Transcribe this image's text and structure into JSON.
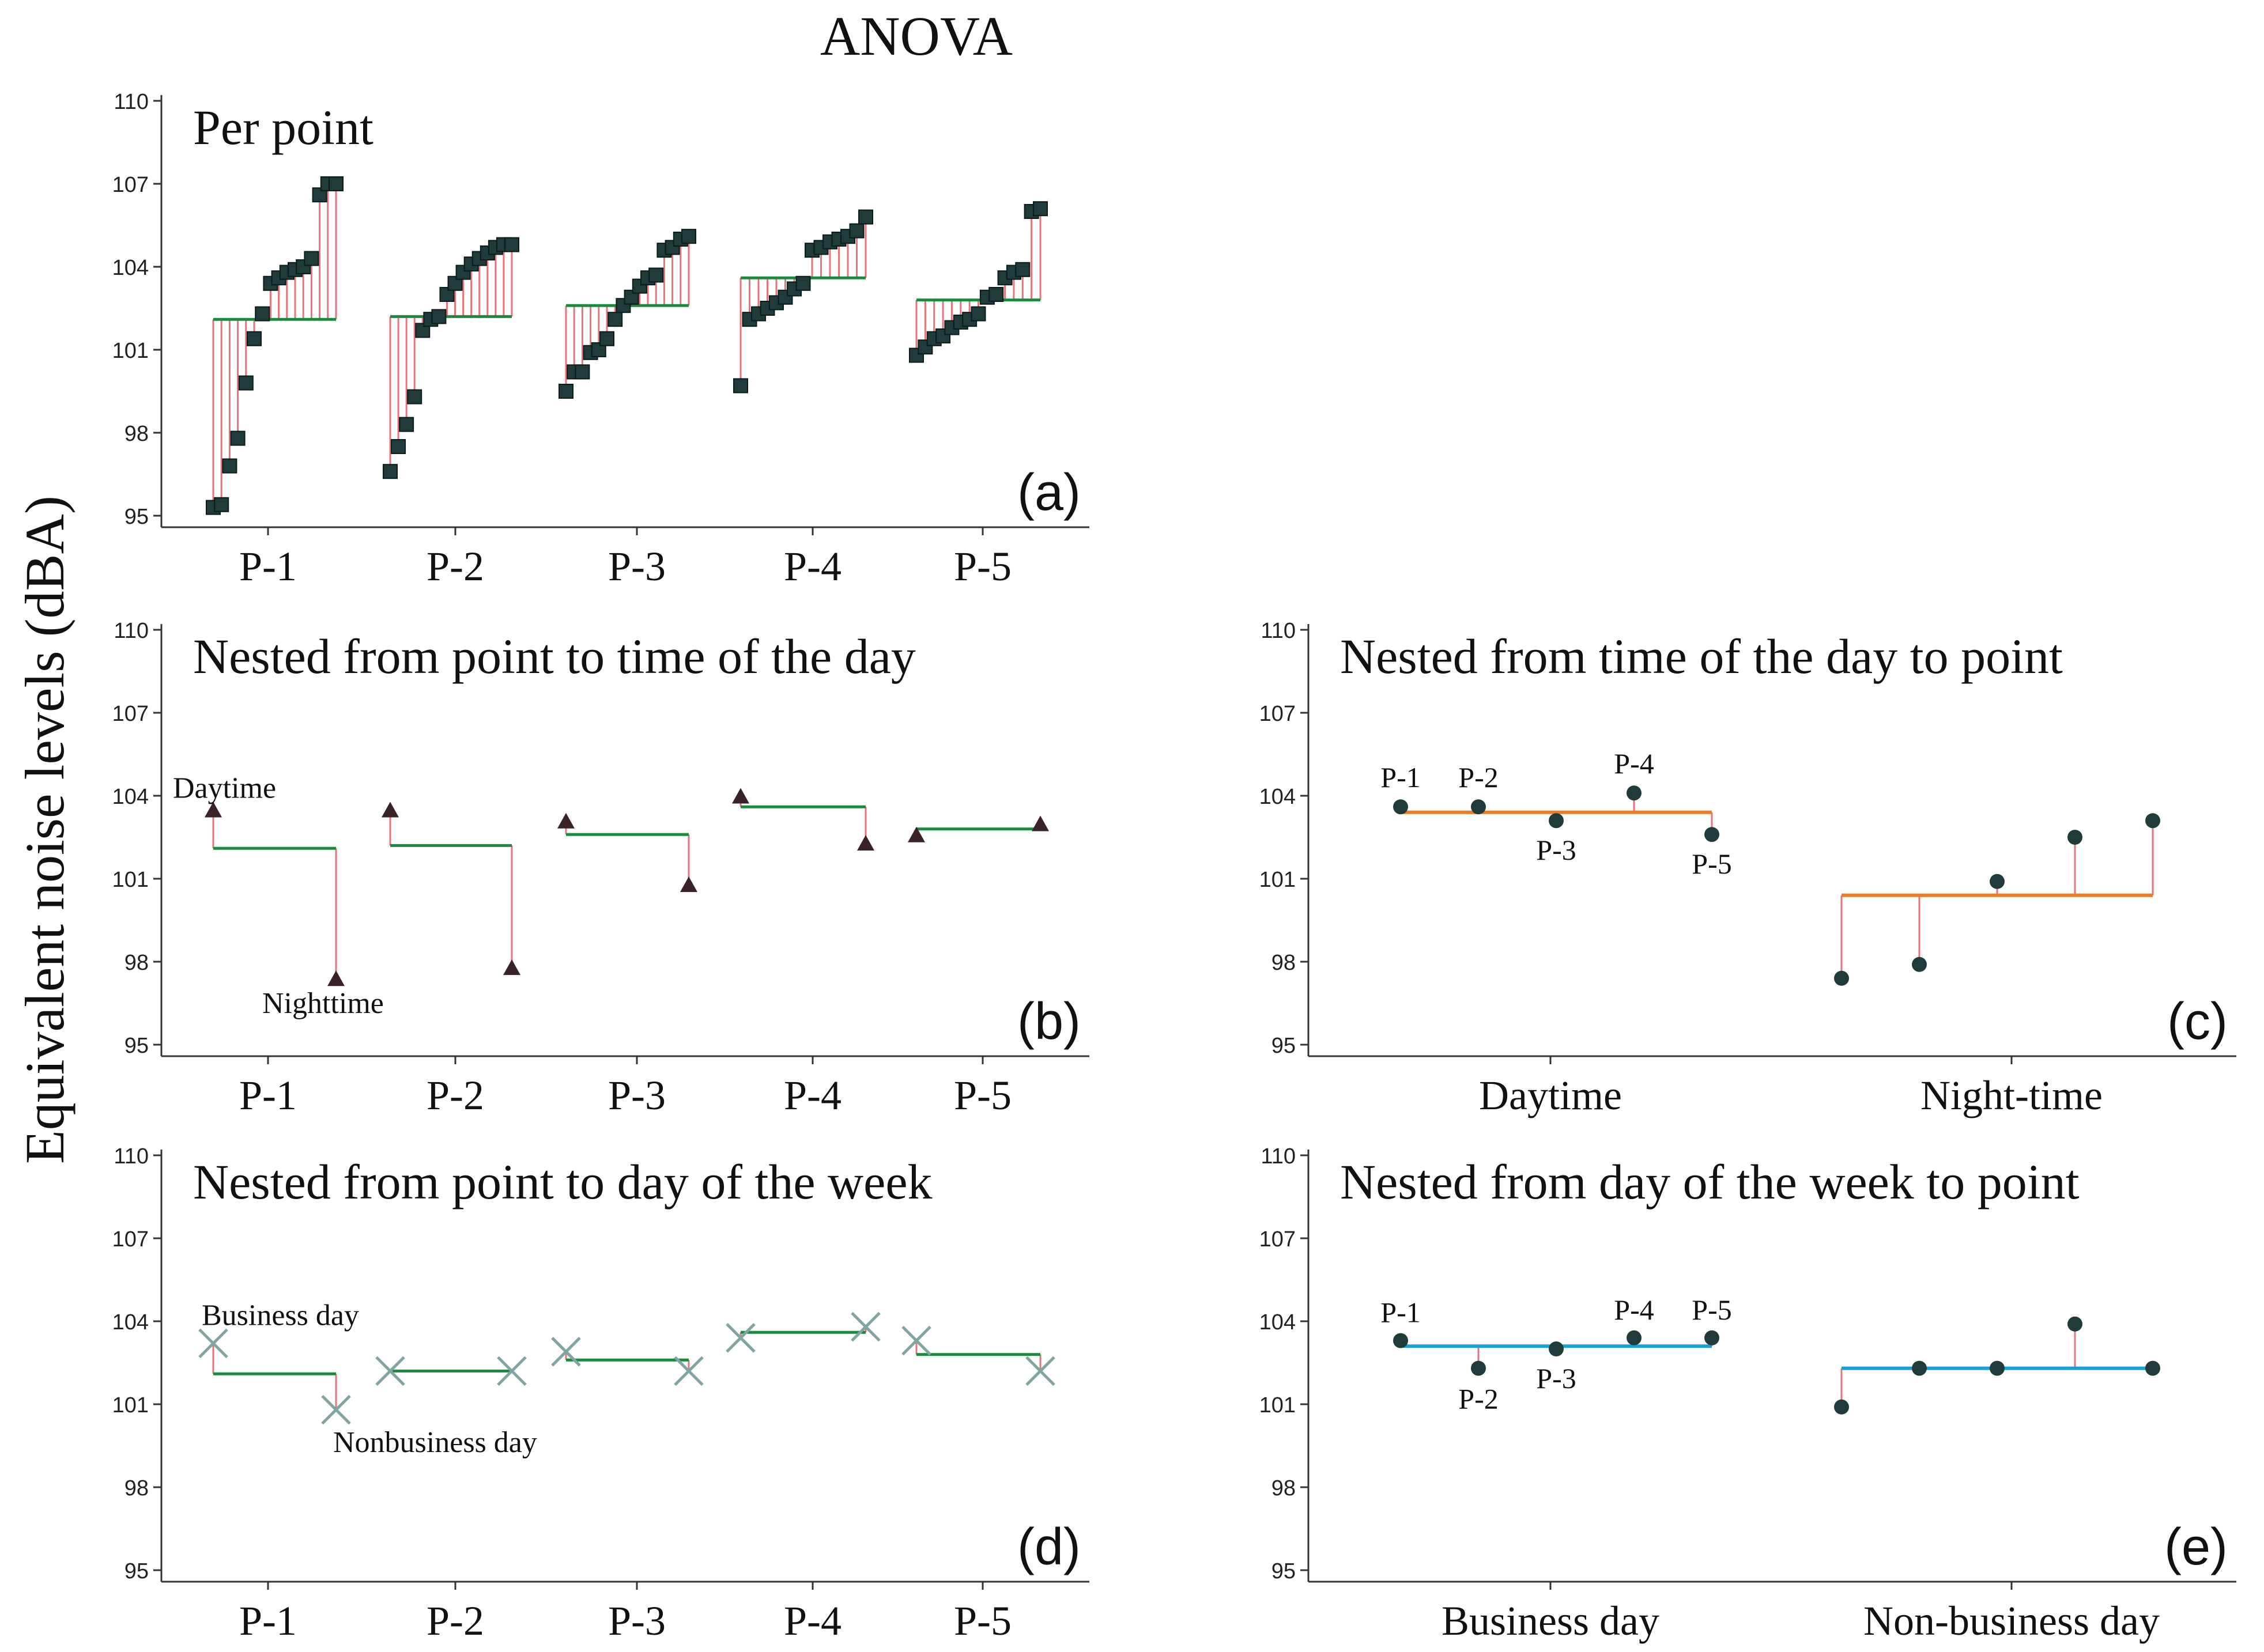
{
  "figure_title": "ANOVA",
  "y_axis_label": "Equivalent noise levels (dBA)",
  "colors": {
    "residual": "#e8737a",
    "green_mean": "#1b8a3c",
    "orange_mean": "#f07a22",
    "blue_mean": "#1aa0d8",
    "marker": "#1f3b3a",
    "triangle": "#3a2328",
    "cross": "#7fa6a2",
    "axis": "#333333"
  },
  "chart_data": [
    {
      "id": "a",
      "type": "scatter",
      "title": "Per point",
      "panel_label": "(a)",
      "categories": [
        "P-1",
        "P-2",
        "P-3",
        "P-4",
        "P-5"
      ],
      "ylim": [
        95,
        110
      ],
      "yticks": [
        95,
        98,
        101,
        104,
        107,
        110
      ],
      "group_means": [
        102.1,
        102.2,
        102.6,
        103.6,
        102.8
      ],
      "groups": [
        [
          95.3,
          95.4,
          96.8,
          97.8,
          99.8,
          101.4,
          102.3,
          103.4,
          103.6,
          103.8,
          103.9,
          104.0,
          104.3,
          106.6,
          107.0,
          107.0
        ],
        [
          96.6,
          97.5,
          98.3,
          99.3,
          101.7,
          102.1,
          102.2,
          103.0,
          103.4,
          103.8,
          104.1,
          104.3,
          104.5,
          104.7,
          104.8,
          104.8
        ],
        [
          99.5,
          100.2,
          100.2,
          100.9,
          101.0,
          101.4,
          102.1,
          102.6,
          102.9,
          103.3,
          103.6,
          103.7,
          104.6,
          104.7,
          105.0,
          105.1
        ],
        [
          99.7,
          102.1,
          102.3,
          102.5,
          102.7,
          102.9,
          103.2,
          103.4,
          104.6,
          104.7,
          104.9,
          105.0,
          105.1,
          105.3,
          105.8
        ],
        [
          100.8,
          101.1,
          101.4,
          101.5,
          101.8,
          102.0,
          102.1,
          102.3,
          102.9,
          103.0,
          103.6,
          103.8,
          103.9,
          106.0,
          106.1
        ]
      ]
    },
    {
      "id": "b",
      "type": "scatter",
      "title": "Nested from point to time of the day",
      "panel_label": "(b)",
      "categories": [
        "P-1",
        "P-2",
        "P-3",
        "P-4",
        "P-5"
      ],
      "ylim": [
        95,
        110
      ],
      "yticks": [
        95,
        98,
        101,
        104,
        107,
        110
      ],
      "group_means": [
        102.1,
        102.2,
        102.6,
        103.6,
        102.8
      ],
      "daytime": [
        103.5,
        103.5,
        103.1,
        104.0,
        102.6
      ],
      "nighttime": [
        97.4,
        97.8,
        100.8,
        102.3,
        103.0
      ],
      "annotations": [
        "Daytime",
        "Nighttime"
      ]
    },
    {
      "id": "c",
      "type": "scatter",
      "title": "Nested from time of the day to point",
      "panel_label": "(c)",
      "categories": [
        "Daytime",
        "Night-time"
      ],
      "ylim": [
        95,
        110
      ],
      "yticks": [
        95,
        98,
        101,
        104,
        107,
        110
      ],
      "group_means": [
        103.4,
        100.4
      ],
      "points": [
        [
          103.6,
          103.6,
          103.1,
          104.1,
          102.6
        ],
        [
          97.4,
          97.9,
          100.9,
          102.5,
          103.1
        ]
      ],
      "point_labels": [
        "P-1",
        "P-2",
        "P-3",
        "P-4",
        "P-5"
      ]
    },
    {
      "id": "d",
      "type": "scatter",
      "title": "Nested from point to day of the week",
      "panel_label": "(d)",
      "categories": [
        "P-1",
        "P-2",
        "P-3",
        "P-4",
        "P-5"
      ],
      "ylim": [
        95,
        110
      ],
      "yticks": [
        95,
        98,
        101,
        104,
        107,
        110
      ],
      "group_means": [
        102.1,
        102.2,
        102.6,
        103.6,
        102.8
      ],
      "business_day": [
        103.2,
        102.2,
        102.9,
        103.4,
        103.3
      ],
      "nonbusiness_day": [
        100.8,
        102.2,
        102.2,
        103.8,
        102.2
      ],
      "annotations": [
        "Business day",
        "Nonbusiness day"
      ]
    },
    {
      "id": "e",
      "type": "scatter",
      "title": "Nested from day of the week to point",
      "panel_label": "(e)",
      "categories": [
        "Business day",
        "Non-business day"
      ],
      "ylim": [
        95,
        110
      ],
      "yticks": [
        95,
        98,
        101,
        104,
        107,
        110
      ],
      "group_means": [
        103.1,
        102.3
      ],
      "points": [
        [
          103.3,
          102.3,
          103.0,
          103.4,
          103.4
        ],
        [
          100.9,
          102.3,
          102.3,
          103.9,
          102.3
        ]
      ],
      "point_labels": [
        "P-1",
        "P-2",
        "P-3",
        "P-4",
        "P-5"
      ]
    }
  ]
}
